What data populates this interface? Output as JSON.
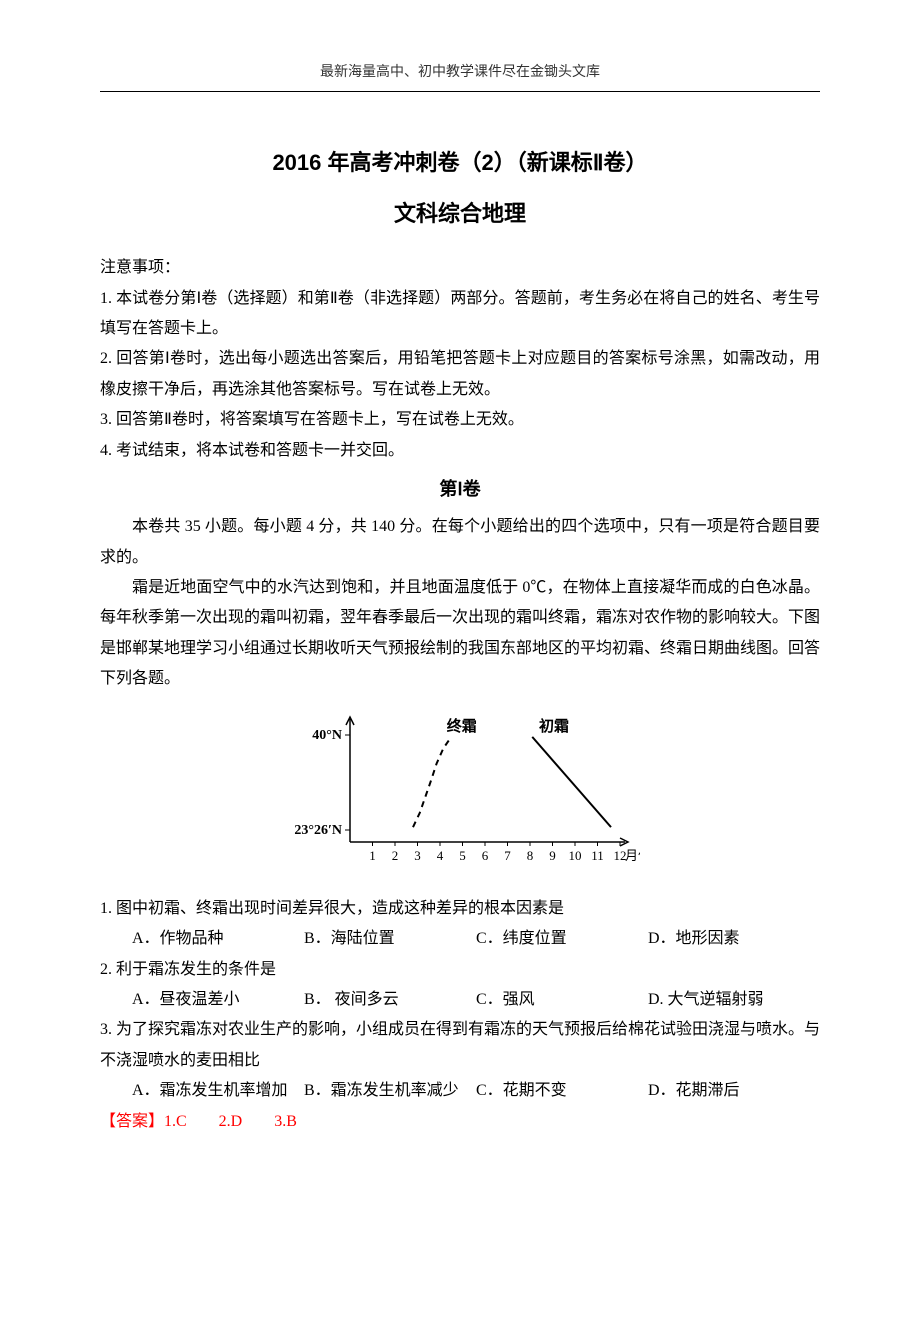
{
  "header": "最新海量高中、初中教学课件尽在金锄头文库",
  "title_line1": "2016 年高考冲刺卷（2）（新课标Ⅱ卷）",
  "title_line2": "文科综合地理",
  "notice_heading": "注意事项：",
  "notices": [
    "1. 本试卷分第Ⅰ卷（选择题）和第Ⅱ卷（非选择题）两部分。答题前，考生务必在将自己的姓名、考生号填写在答题卡上。",
    "2. 回答第Ⅰ卷时，选出每小题选出答案后，用铅笔把答题卡上对应题目的答案标号涂黑，如需改动，用橡皮擦干净后，再选涂其他答案标号。写在试卷上无效。",
    "3. 回答第Ⅱ卷时，将答案填写在答题卡上，写在试卷上无效。",
    "4. 考试结束，将本试卷和答题卡一并交回。"
  ],
  "section1_title": "第Ⅰ卷",
  "section1_intro": "本卷共 35 小题。每小题 4 分，共 140 分。在每个小题给出的四个选项中，只有一项是符合题目要求的。",
  "passage": "霜是近地面空气中的水汽达到饱和，并且地面温度低于 0℃，在物体上直接凝华而成的白色冰晶。每年秋季第一次出现的霜叫初霜，翌年春季最后一次出现的霜叫终霜，霜冻对农作物的影响较大。下图是邯郸某地理学习小组通过长期收听天气预报绘制的我国东部地区的平均初霜、终霜日期曲线图。回答下列各题。",
  "chart": {
    "type": "line",
    "y_top_label": "40°N",
    "y_bottom_label": "23°26′N",
    "x_labels": [
      "1",
      "2",
      "3",
      "4",
      "5",
      "6",
      "7",
      "8",
      "9",
      "10",
      "11",
      "12"
    ],
    "x_unit": "月份",
    "series": [
      {
        "name": "终霜",
        "dashed": true,
        "points": [
          {
            "x": 2.8,
            "y": 0.03
          },
          {
            "x": 3.1,
            "y": 0.18
          },
          {
            "x": 3.35,
            "y": 0.35
          },
          {
            "x": 3.6,
            "y": 0.52
          },
          {
            "x": 3.85,
            "y": 0.7
          },
          {
            "x": 4.15,
            "y": 0.86
          },
          {
            "x": 4.5,
            "y": 0.98
          }
        ]
      },
      {
        "name": "初霜",
        "dashed": false,
        "points": [
          {
            "x": 8.1,
            "y": 0.98
          },
          {
            "x": 11.6,
            "y": 0.03
          }
        ]
      }
    ],
    "axis_color": "#000000",
    "line_color": "#000000",
    "background_color": "#ffffff",
    "font_size": 14
  },
  "questions": [
    {
      "stem": "1. 图中初霜、终霜出现时间差异很大，造成这种差异的根本因素是",
      "opts": [
        "A．作物品种",
        "B．海陆位置",
        "C．纬度位置",
        "D．地形因素"
      ]
    },
    {
      "stem": "2. 利于霜冻发生的条件是",
      "opts": [
        "A．昼夜温差小",
        "B． 夜间多云",
        "C．强风",
        "D. 大气逆辐射弱"
      ]
    },
    {
      "stem": "3. 为了探究霜冻对农业生产的影响，小组成员在得到有霜冻的天气预报后给棉花试验田浇湿与喷水。与不浇湿喷水的麦田相比",
      "opts": [
        "A．霜冻发生机率增加",
        "B．霜冻发生机率减少",
        "C．花期不变",
        "D．花期滞后"
      ]
    }
  ],
  "answer_line": "【答案】1.C　　2.D　　3.B"
}
